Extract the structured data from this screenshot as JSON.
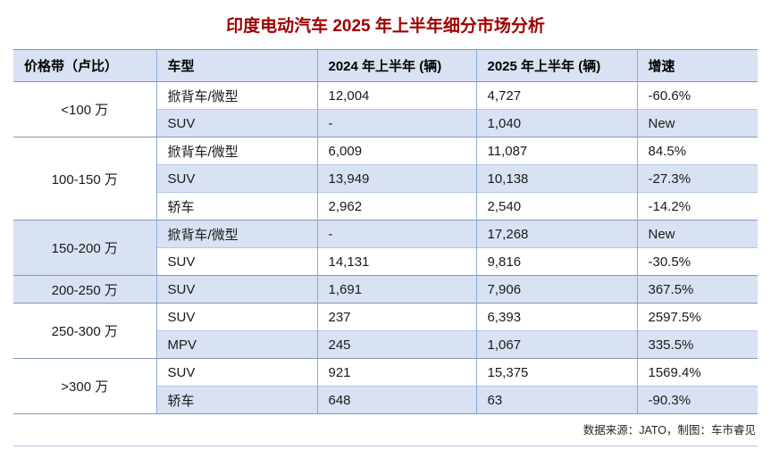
{
  "title": "印度电动汽车 2025 年上半年细分市场分析",
  "colors": {
    "title_text": "#a00000",
    "header_fill": "#d9e2f3",
    "banded_row_fill": "#d9e2f3",
    "border_strong": "#8496b0",
    "border_light": "#b4c7e7",
    "border_vertical": "#8eaadb"
  },
  "table": {
    "headers": [
      "价格带（卢比）",
      "车型",
      "2024 年上半年 (辆)",
      "2025 年上半年 (辆)",
      "增速"
    ],
    "groups": [
      {
        "band": "<100 万",
        "rows": [
          {
            "type": "掀背车/微型",
            "y2024": "12,004",
            "y2025": "4,727",
            "growth": "-60.6%"
          },
          {
            "type": "SUV",
            "y2024": "-",
            "y2025": "1,040",
            "growth": "New"
          }
        ]
      },
      {
        "band": "100-150 万",
        "rows": [
          {
            "type": "掀背车/微型",
            "y2024": "6,009",
            "y2025": "11,087",
            "growth": "84.5%"
          },
          {
            "type": "SUV",
            "y2024": "13,949",
            "y2025": "10,138",
            "growth": "-27.3%"
          },
          {
            "type": "轿车",
            "y2024": "2,962",
            "y2025": "2,540",
            "growth": "-14.2%"
          }
        ]
      },
      {
        "band": "150-200 万",
        "rows": [
          {
            "type": "掀背车/微型",
            "y2024": "-",
            "y2025": "17,268",
            "growth": "New"
          },
          {
            "type": "SUV",
            "y2024": "14,131",
            "y2025": "9,816",
            "growth": "-30.5%"
          }
        ]
      },
      {
        "band": "200-250 万",
        "rows": [
          {
            "type": "SUV",
            "y2024": "1,691",
            "y2025": "7,906",
            "growth": "367.5%"
          }
        ]
      },
      {
        "band": "250-300 万",
        "rows": [
          {
            "type": "SUV",
            "y2024": "237",
            "y2025": "6,393",
            "growth": "2597.5%"
          },
          {
            "type": "MPV",
            "y2024": "245",
            "y2025": "1,067",
            "growth": "335.5%"
          }
        ]
      },
      {
        "band": ">300 万",
        "rows": [
          {
            "type": "SUV",
            "y2024": "921",
            "y2025": "15,375",
            "growth": "1569.4%"
          },
          {
            "type": "轿车",
            "y2024": "648",
            "y2025": "63",
            "growth": "-90.3%"
          }
        ]
      }
    ]
  },
  "footer": {
    "source": "数据来源：JATO，制图：车市睿见"
  },
  "chart_data": {
    "type": "table",
    "title": "印度电动汽车 2025 年上半年细分市场分析",
    "columns": [
      "价格带（卢比）",
      "车型",
      "2024 年上半年 (辆)",
      "2025 年上半年 (辆)",
      "增速"
    ],
    "rows": [
      [
        "<100 万",
        "掀背车/微型",
        "12,004",
        "4,727",
        "-60.6%"
      ],
      [
        "<100 万",
        "SUV",
        "-",
        "1,040",
        "New"
      ],
      [
        "100-150 万",
        "掀背车/微型",
        "6,009",
        "11,087",
        "84.5%"
      ],
      [
        "100-150 万",
        "SUV",
        "13,949",
        "10,138",
        "-27.3%"
      ],
      [
        "100-150 万",
        "轿车",
        "2,962",
        "2,540",
        "-14.2%"
      ],
      [
        "150-200 万",
        "掀背车/微型",
        "-",
        "17,268",
        "New"
      ],
      [
        "150-200 万",
        "SUV",
        "14,131",
        "9,816",
        "-30.5%"
      ],
      [
        "200-250 万",
        "SUV",
        "1,691",
        "7,906",
        "367.5%"
      ],
      [
        "250-300 万",
        "SUV",
        "237",
        "6,393",
        "2597.5%"
      ],
      [
        "250-300 万",
        "MPV",
        "245",
        "1,067",
        "335.5%"
      ],
      [
        ">300 万",
        "SUV",
        "921",
        "15,375",
        "1569.4%"
      ],
      [
        ">300 万",
        "轿车",
        "648",
        "63",
        "-90.3%"
      ]
    ],
    "source_note": "数据来源：JATO，制图：车市睿见"
  }
}
